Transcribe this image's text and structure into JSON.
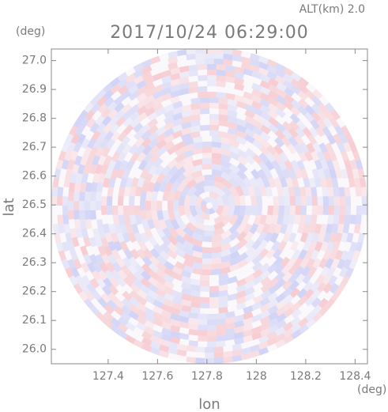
{
  "chart_data": {
    "type": "radar-field",
    "annotation": "ALT(km) 2.0",
    "title": "2017/10/24 06:29:00",
    "x_label": "lon",
    "y_label": "lat",
    "x_unit": "(deg)",
    "y_unit": "(deg)",
    "xlim": [
      127.17,
      128.45
    ],
    "xticks": [
      127.4,
      127.6,
      127.8,
      128.0,
      128.2,
      128.4
    ],
    "ylim": [
      25.95,
      27.04
    ],
    "yticks": [
      {
        "value": 26.0,
        "label": "26.0"
      },
      26.1,
      26.2,
      26.3,
      26.4,
      26.5,
      26.6,
      26.7,
      26.8,
      26.9,
      {
        "value": 27.0,
        "label": "27.0"
      }
    ]
  }
}
